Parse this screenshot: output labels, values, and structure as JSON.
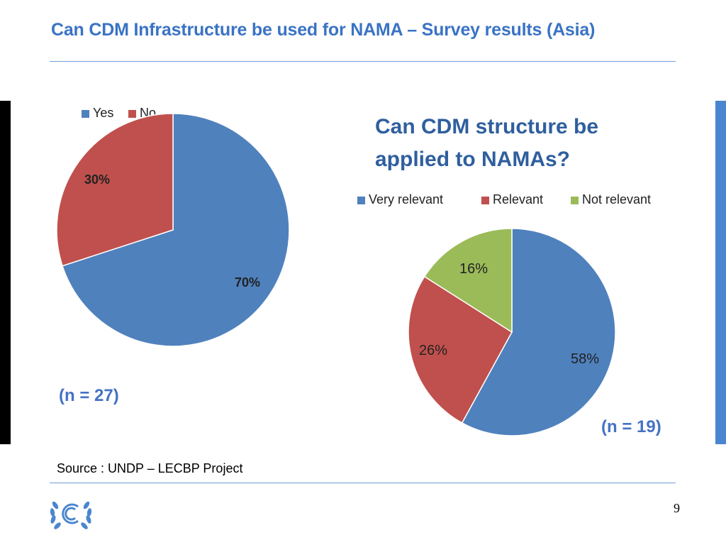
{
  "slide": {
    "title": "Can CDM Infrastructure be used for NAMA – Survey results (Asia)",
    "source": "Source : UNDP – LECBP Project",
    "page_number": "9"
  },
  "colors": {
    "title": "#3a73c4",
    "blue": "#4f81bd",
    "red": "#c0504d",
    "green": "#9bbb59"
  },
  "chart_data": [
    {
      "type": "pie",
      "title": "",
      "categories": [
        "Yes",
        "No"
      ],
      "values": [
        70,
        30
      ],
      "data_labels": [
        "70%",
        "30%"
      ],
      "colors": [
        "#4f81bd",
        "#c0504d"
      ],
      "legend_position": "top-left",
      "note": "(n = 27)"
    },
    {
      "type": "pie",
      "title": "Can CDM structure be applied to NAMAs?",
      "categories": [
        "Very relevant",
        "Relevant",
        "Not relevant"
      ],
      "values": [
        58,
        26,
        16
      ],
      "data_labels": [
        "58%",
        "26%",
        "16%"
      ],
      "colors": [
        "#4f81bd",
        "#c0504d",
        "#9bbb59"
      ],
      "legend_position": "top",
      "note": "(n = 19)"
    }
  ]
}
